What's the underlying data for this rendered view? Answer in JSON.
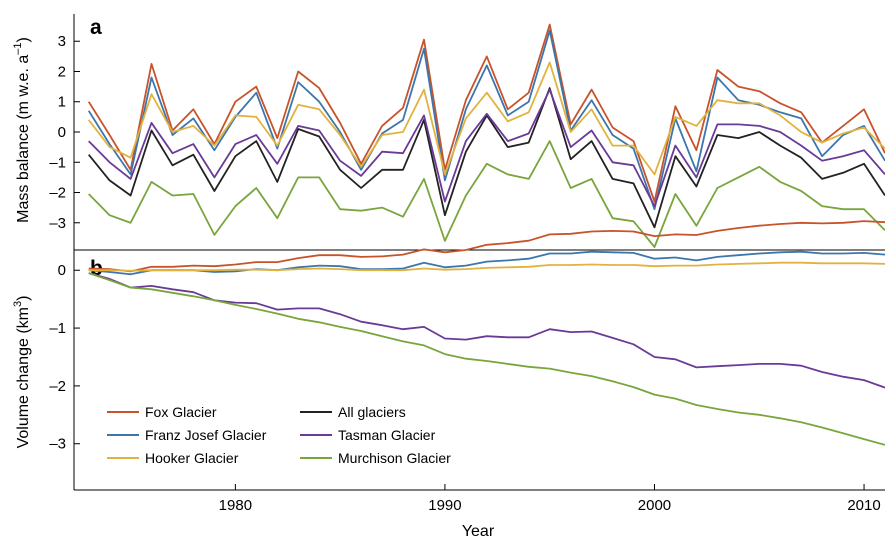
{
  "chart_data": [
    {
      "panel": "a",
      "type": "line",
      "ylabel": "Mass balance (m w.e. a",
      "ylabel_sup": "–1",
      "ylabel_close": ")",
      "ylim": [
        -3.9,
        3.9
      ],
      "yticks": [
        -3,
        -2,
        -1,
        0,
        1,
        2,
        3
      ],
      "yticklabels": [
        "–3",
        "–2",
        "–1",
        "0",
        "1",
        "2",
        "3"
      ],
      "xlim": [
        1972.3,
        2011
      ],
      "x": [
        1973,
        1974,
        1975,
        1976,
        1977,
        1978,
        1979,
        1980,
        1981,
        1982,
        1983,
        1984,
        1985,
        1986,
        1987,
        1988,
        1989,
        1990,
        1991,
        1992,
        1993,
        1994,
        1995,
        1996,
        1997,
        1998,
        1999,
        2000,
        2001,
        2002,
        2003,
        2004,
        2005,
        2006,
        2007,
        2008,
        2009,
        2010,
        2011
      ],
      "series": [
        {
          "name": "Fox Glacier",
          "color": "#c8532a",
          "values": [
            1.0,
            -0.1,
            -1.25,
            2.25,
            0.05,
            0.75,
            -0.4,
            1.0,
            1.5,
            -0.2,
            2.0,
            1.45,
            0.3,
            -1.05,
            0.2,
            0.8,
            3.05,
            -1.25,
            1.05,
            2.5,
            0.75,
            1.3,
            3.55,
            0.25,
            1.4,
            0.15,
            -0.3,
            -2.3,
            0.85,
            -0.6,
            2.05,
            1.5,
            1.35,
            0.95,
            0.65,
            -0.35,
            0.2,
            0.75,
            -0.7
          ]
        },
        {
          "name": "Franz Josef Glacier",
          "color": "#3b76ad",
          "values": [
            0.7,
            -0.4,
            -1.4,
            1.8,
            -0.1,
            0.45,
            -0.6,
            0.5,
            1.3,
            -0.55,
            1.65,
            1.0,
            0.0,
            -1.25,
            -0.05,
            0.4,
            2.75,
            -1.6,
            0.75,
            2.2,
            0.55,
            1.0,
            3.35,
            0.05,
            1.05,
            -0.1,
            -0.55,
            -2.55,
            0.45,
            -1.3,
            1.8,
            1.05,
            0.9,
            0.65,
            0.45,
            -0.8,
            -0.1,
            0.2,
            -0.95
          ]
        },
        {
          "name": "Hooker Glacier",
          "color": "#e2b23e",
          "values": [
            0.4,
            -0.5,
            -0.85,
            1.25,
            0.0,
            0.2,
            -0.45,
            0.55,
            0.5,
            -0.45,
            0.9,
            0.75,
            -0.1,
            -1.15,
            -0.1,
            0.0,
            1.4,
            -1.4,
            0.45,
            1.3,
            0.35,
            0.65,
            2.3,
            0.0,
            0.75,
            -0.45,
            -0.45,
            -1.4,
            0.5,
            0.2,
            1.05,
            0.95,
            0.95,
            0.55,
            0.0,
            -0.35,
            -0.05,
            0.15,
            -0.55
          ]
        },
        {
          "name": "All glaciers",
          "color": "#222222",
          "values": [
            -0.75,
            -1.6,
            -2.1,
            0.05,
            -1.1,
            -0.75,
            -1.95,
            -0.8,
            -0.3,
            -1.65,
            0.1,
            -0.15,
            -1.25,
            -1.85,
            -1.25,
            -1.25,
            0.4,
            -2.75,
            -0.65,
            0.55,
            -0.5,
            -0.35,
            1.45,
            -0.9,
            -0.3,
            -1.55,
            -1.7,
            -3.15,
            -0.8,
            -1.8,
            -0.1,
            -0.2,
            0.0,
            -0.45,
            -0.85,
            -1.55,
            -1.35,
            -1.05,
            -2.1
          ]
        },
        {
          "name": "Tasman Glacier",
          "color": "#6a3a97",
          "values": [
            -0.3,
            -1.0,
            -1.55,
            0.3,
            -0.7,
            -0.4,
            -1.5,
            -0.4,
            -0.1,
            -1.05,
            0.2,
            0.05,
            -0.95,
            -1.45,
            -0.65,
            -0.7,
            0.55,
            -2.3,
            -0.3,
            0.6,
            -0.3,
            -0.05,
            1.4,
            -0.5,
            0.05,
            -1.0,
            -1.1,
            -2.45,
            -0.45,
            -1.5,
            0.25,
            0.25,
            0.2,
            0.0,
            -0.45,
            -0.95,
            -0.8,
            -0.6,
            -1.4
          ]
        },
        {
          "name": "Murchison Glacier",
          "color": "#7aa53c",
          "values": [
            -2.05,
            -2.75,
            -3.0,
            -1.65,
            -2.1,
            -2.05,
            -3.4,
            -2.45,
            -1.85,
            -2.85,
            -1.5,
            -1.5,
            -2.55,
            -2.6,
            -2.5,
            -2.8,
            -1.55,
            -3.6,
            -2.1,
            -1.05,
            -1.4,
            -1.55,
            -0.3,
            -1.85,
            -1.55,
            -2.85,
            -2.95,
            -3.8,
            -2.05,
            -3.1,
            -1.85,
            -1.5,
            -1.15,
            -1.65,
            -1.95,
            -2.45,
            -2.55,
            -2.55,
            -3.25
          ]
        }
      ]
    },
    {
      "panel": "b",
      "type": "line",
      "ylabel": "Volume change (km",
      "ylabel_sup": "3",
      "ylabel_close": ")",
      "ylim": [
        -3.8,
        0.35
      ],
      "yticks": [
        -3,
        -2,
        -1,
        0
      ],
      "yticklabels": [
        "–3",
        "–2",
        "–1",
        "0"
      ],
      "xlim": [
        1972.3,
        2011
      ],
      "xticks": [
        1980,
        1990,
        2000,
        2010
      ],
      "xticklabels": [
        "1980",
        "1990",
        "2000",
        "2010"
      ],
      "xlabel": "Year",
      "x": [
        1973,
        1974,
        1975,
        1976,
        1977,
        1978,
        1979,
        1980,
        1981,
        1982,
        1983,
        1984,
        1985,
        1986,
        1987,
        1988,
        1989,
        1990,
        1991,
        1992,
        1993,
        1994,
        1995,
        1996,
        1997,
        1998,
        1999,
        2000,
        2001,
        2002,
        2003,
        2004,
        2005,
        2006,
        2007,
        2008,
        2009,
        2010,
        2011
      ],
      "series": [
        {
          "name": "Fox Glacier",
          "color": "#c8532a",
          "values": [
            0.03,
            0.02,
            -0.02,
            0.06,
            0.06,
            0.08,
            0.07,
            0.1,
            0.14,
            0.14,
            0.21,
            0.26,
            0.26,
            0.23,
            0.24,
            0.27,
            0.36,
            0.31,
            0.35,
            0.44,
            0.47,
            0.51,
            0.62,
            0.63,
            0.67,
            0.68,
            0.67,
            0.59,
            0.62,
            0.61,
            0.68,
            0.73,
            0.77,
            0.8,
            0.82,
            0.81,
            0.82,
            0.85,
            0.83
          ]
        },
        {
          "name": "Franz Josef Glacier",
          "color": "#3b76ad",
          "values": [
            0.0,
            -0.03,
            -0.07,
            0.0,
            0.0,
            0.0,
            -0.03,
            -0.02,
            0.02,
            0.0,
            0.05,
            0.08,
            0.07,
            0.02,
            0.02,
            0.03,
            0.13,
            0.05,
            0.08,
            0.15,
            0.17,
            0.2,
            0.29,
            0.29,
            0.32,
            0.31,
            0.3,
            0.2,
            0.22,
            0.17,
            0.23,
            0.26,
            0.29,
            0.31,
            0.32,
            0.29,
            0.29,
            0.3,
            0.27
          ]
        },
        {
          "name": "Hooker Glacier",
          "color": "#e2b23e",
          "values": [
            0.0,
            0.0,
            -0.01,
            0.0,
            0.0,
            0.0,
            0.0,
            0.01,
            0.01,
            0.0,
            0.02,
            0.03,
            0.02,
            0.0,
            0.0,
            0.0,
            0.03,
            0.01,
            0.02,
            0.04,
            0.05,
            0.06,
            0.09,
            0.09,
            0.1,
            0.09,
            0.09,
            0.07,
            0.08,
            0.08,
            0.1,
            0.11,
            0.12,
            0.13,
            0.13,
            0.12,
            0.12,
            0.12,
            0.11
          ]
        },
        {
          "name": "Tasman Glacier",
          "color": "#6a3a97",
          "values": [
            -0.05,
            -0.15,
            -0.3,
            -0.27,
            -0.33,
            -0.38,
            -0.52,
            -0.56,
            -0.57,
            -0.68,
            -0.66,
            -0.66,
            -0.76,
            -0.89,
            -0.95,
            -1.02,
            -0.98,
            -1.18,
            -1.2,
            -1.14,
            -1.16,
            -1.16,
            -1.02,
            -1.07,
            -1.06,
            -1.17,
            -1.28,
            -1.5,
            -1.54,
            -1.68,
            -1.66,
            -1.64,
            -1.62,
            -1.62,
            -1.65,
            -1.76,
            -1.84,
            -1.9,
            -2.03
          ]
        },
        {
          "name": "Murchison Glacier",
          "color": "#7aa53c",
          "values": [
            -0.05,
            -0.17,
            -0.3,
            -0.33,
            -0.39,
            -0.45,
            -0.52,
            -0.6,
            -0.67,
            -0.75,
            -0.84,
            -0.9,
            -0.98,
            -1.05,
            -1.14,
            -1.23,
            -1.3,
            -1.45,
            -1.53,
            -1.57,
            -1.62,
            -1.67,
            -1.7,
            -1.77,
            -1.83,
            -1.92,
            -2.02,
            -2.15,
            -2.22,
            -2.33,
            -2.4,
            -2.46,
            -2.5,
            -2.56,
            -2.63,
            -2.72,
            -2.82,
            -2.92,
            -3.02
          ]
        }
      ]
    }
  ],
  "legend": [
    {
      "name": "Fox Glacier",
      "color": "#c8532a"
    },
    {
      "name": "Franz Josef Glacier",
      "color": "#3b76ad"
    },
    {
      "name": "Hooker Glacier",
      "color": "#e2b23e"
    },
    {
      "name": "All glaciers",
      "color": "#222222"
    },
    {
      "name": "Tasman Glacier",
      "color": "#6a3a97"
    },
    {
      "name": "Murchison Glacier",
      "color": "#7aa53c"
    }
  ]
}
